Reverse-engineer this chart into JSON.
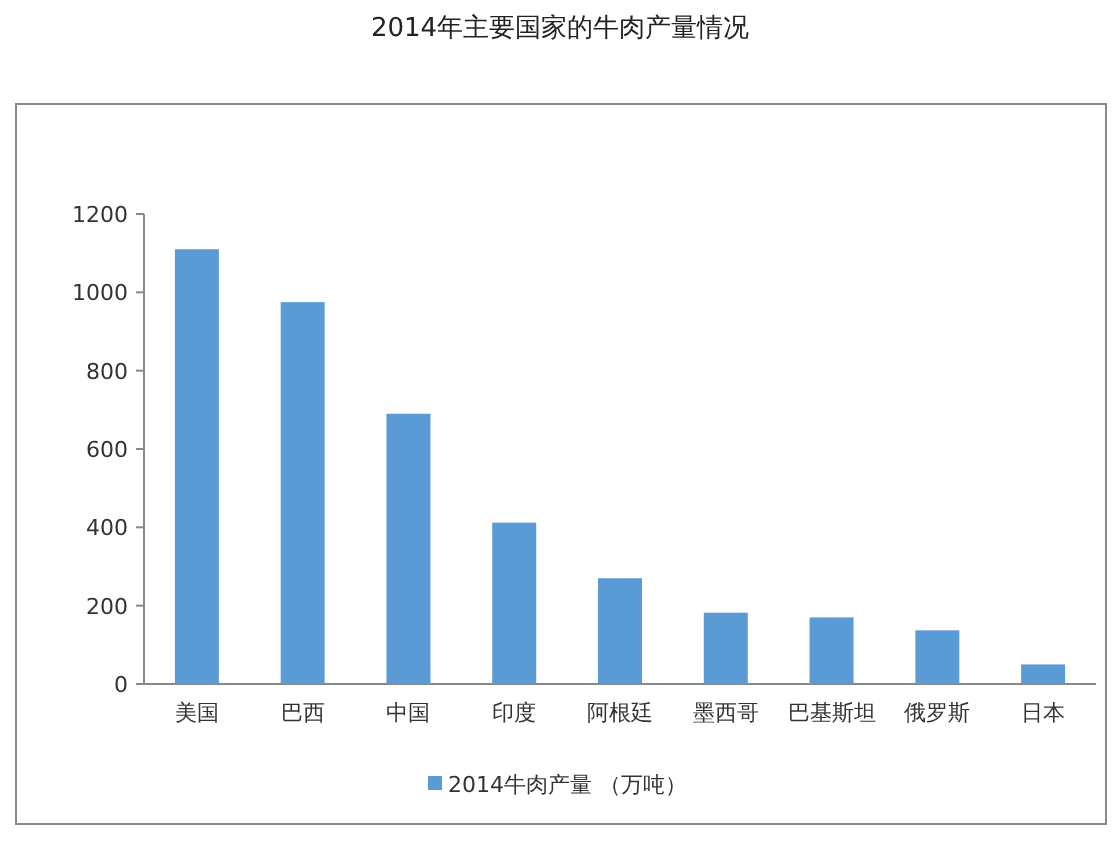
{
  "chart_data": {
    "type": "bar",
    "title": "2014年主要国家的牛肉产量情况",
    "categories": [
      "美国",
      "巴西",
      "中国",
      "印度",
      "阿根廷",
      "墨西哥",
      "巴基斯坦",
      "俄罗斯",
      "日本"
    ],
    "series": [
      {
        "name": "2014牛肉产量 （万吨）",
        "color": "#5b9bd5",
        "values": [
          1110,
          975,
          690,
          412,
          270,
          182,
          170,
          137,
          50
        ]
      }
    ],
    "ylim": [
      0,
      1200
    ],
    "yticks": [
      0,
      200,
      400,
      600,
      800,
      1000,
      1200
    ],
    "grid": false,
    "legend": "bottom"
  }
}
